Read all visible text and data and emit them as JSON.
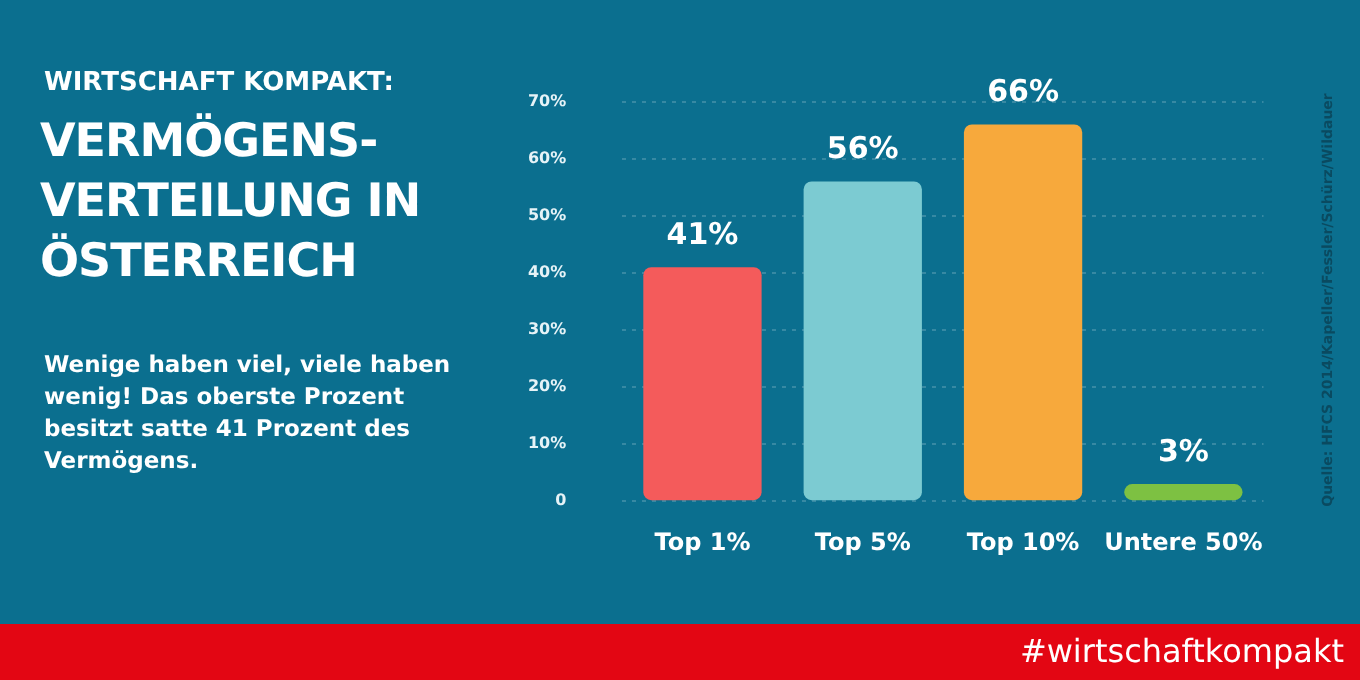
{
  "chart_data": {
    "type": "bar",
    "title": "VERMÖGENS-VERTEILUNG IN ÖSTERREICH",
    "subtitle": "Wenige haben viel, viele haben wenig! Das oberste Prozent besitzt satte 41 Prozent des Vermögens.",
    "annotations": [
      "WIRTSCHAFT KOMPAKT:",
      "Quelle: HFCS 2014/Kapeller/Fessler/Schürz/Wildauer",
      "#wirtschaftkompakt"
    ],
    "categories": [
      "Top 1%",
      "Top 5%",
      "Top 10%",
      "Untere 50%"
    ],
    "values": [
      41,
      56,
      66,
      3
    ],
    "colors": [
      "#f45b5b",
      "#7ccbd2",
      "#f7a93c",
      "#7dc142"
    ],
    "value_labels": [
      "41%",
      "56%",
      "66%",
      "3%"
    ],
    "ylim": [
      0,
      70
    ],
    "yticks": [
      {
        "value": 0,
        "label": "0"
      },
      {
        "value": 10,
        "label": "10%"
      },
      {
        "value": 20,
        "label": "20%"
      },
      {
        "value": 30,
        "label": "30%"
      },
      {
        "value": 40,
        "label": "40%"
      },
      {
        "value": 50,
        "label": "50%"
      },
      {
        "value": 60,
        "label": "60%"
      },
      {
        "value": 70,
        "label": "70%"
      }
    ],
    "grid": "y",
    "legend": false
  }
}
